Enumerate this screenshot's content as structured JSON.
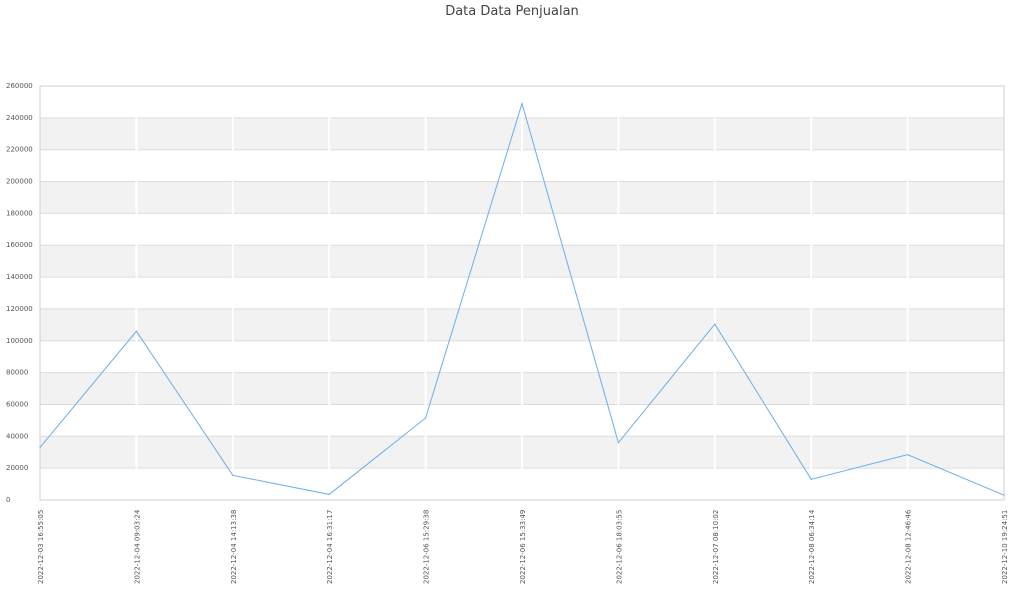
{
  "chart_data": {
    "type": "line",
    "title": "Data Data Penjualan",
    "xlabel": "",
    "ylabel": "",
    "ylim": [
      0,
      260000
    ],
    "yticks": [
      0,
      20000,
      40000,
      60000,
      80000,
      100000,
      120000,
      140000,
      160000,
      180000,
      200000,
      220000,
      240000,
      260000
    ],
    "grid": true,
    "categories": [
      "2022-12-03 16:55:05",
      "2022-12-04 09:03:24",
      "2022-12-04 14:13:38",
      "2022-12-04 16:31:17",
      "2022-12-06 15:29:38",
      "2022-12-06 15:33:49",
      "2022-12-06 18:03:55",
      "2022-12-07 08:10:02",
      "2022-12-08 06:34:14",
      "2022-12-08 12:46:46",
      "2022-12-10 19:24:51"
    ],
    "series": [
      {
        "values": [
          33000,
          106000,
          15500,
          3500,
          51500,
          249000,
          36000,
          110500,
          13000,
          28500,
          3000
        ],
        "color": "#6aaee8"
      }
    ]
  }
}
